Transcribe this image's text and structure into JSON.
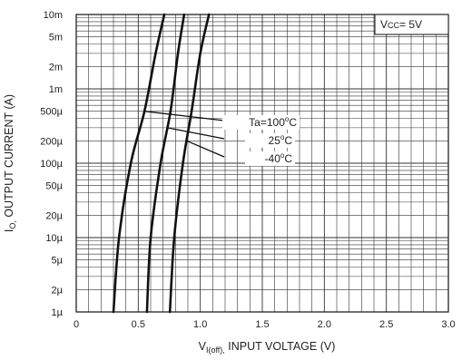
{
  "chart_data": {
    "type": "line",
    "title": "",
    "xlabel": "V_I(off), INPUT VOLTAGE (V)",
    "xlabel_parts": {
      "sym": "V",
      "sub": "I(off),",
      "rest": " INPUT VOLTAGE (V)"
    },
    "ylabel": "I_O, OUTPUT CURRENT (A)",
    "ylabel_parts": {
      "sym": "I",
      "sub": "O,",
      "rest": " OUTPUT CURRENT (A)"
    },
    "xlim": [
      0,
      3.0
    ],
    "ylim": [
      1e-06,
      0.01
    ],
    "yscale": "log",
    "grid": true,
    "x_ticks": [
      {
        "v": 0,
        "label": "0"
      },
      {
        "v": 0.5,
        "label": "0.5"
      },
      {
        "v": 1.0,
        "label": "1.0"
      },
      {
        "v": 1.5,
        "label": "1.5"
      },
      {
        "v": 2.0,
        "label": "2.0"
      },
      {
        "v": 2.5,
        "label": "2.5"
      },
      {
        "v": 3.0,
        "label": "3.0"
      }
    ],
    "y_ticks": [
      {
        "v": 0.01,
        "label": "10m"
      },
      {
        "v": 0.005,
        "label": "5m"
      },
      {
        "v": 0.002,
        "label": "2m"
      },
      {
        "v": 0.001,
        "label": "1m"
      },
      {
        "v": 0.0005,
        "label": "500µ"
      },
      {
        "v": 0.0002,
        "label": "200µ"
      },
      {
        "v": 0.0001,
        "label": "100µ"
      },
      {
        "v": 5e-05,
        "label": "50µ"
      },
      {
        "v": 2e-05,
        "label": "20µ"
      },
      {
        "v": 1e-05,
        "label": "10µ"
      },
      {
        "v": 5e-06,
        "label": "5µ"
      },
      {
        "v": 2e-06,
        "label": "2µ"
      },
      {
        "v": 1e-06,
        "label": "1µ"
      }
    ],
    "condition": {
      "prefix": "V",
      "sub": "CC",
      "rest": "= 5V"
    },
    "series": [
      {
        "name": "Ta=100°C",
        "name_parts": {
          "main": "Ta=100",
          "sup": "o",
          "unit": "C"
        },
        "points": [
          [
            0.3,
            1e-06
          ],
          [
            0.345,
            1e-05
          ],
          [
            0.44,
            0.0001
          ],
          [
            0.55,
            0.0005
          ],
          [
            0.64,
            0.003
          ],
          [
            0.71,
            0.01
          ]
        ]
      },
      {
        "name": "25°C",
        "name_parts": {
          "main": "25",
          "sup": "o",
          "unit": "C"
        },
        "points": [
          [
            0.57,
            1e-06
          ],
          [
            0.6,
            1e-05
          ],
          [
            0.68,
            0.0001
          ],
          [
            0.76,
            0.0005
          ],
          [
            0.82,
            0.003
          ],
          [
            0.87,
            0.01
          ]
        ]
      },
      {
        "name": "-40°C",
        "name_parts": {
          "main": "-40",
          "sup": "o",
          "unit": "C"
        },
        "points": [
          [
            0.755,
            1e-06
          ],
          [
            0.79,
            1e-05
          ],
          [
            0.86,
            0.0001
          ],
          [
            0.93,
            0.0005
          ],
          [
            1.0,
            0.003
          ],
          [
            1.07,
            0.01
          ]
        ]
      }
    ]
  }
}
